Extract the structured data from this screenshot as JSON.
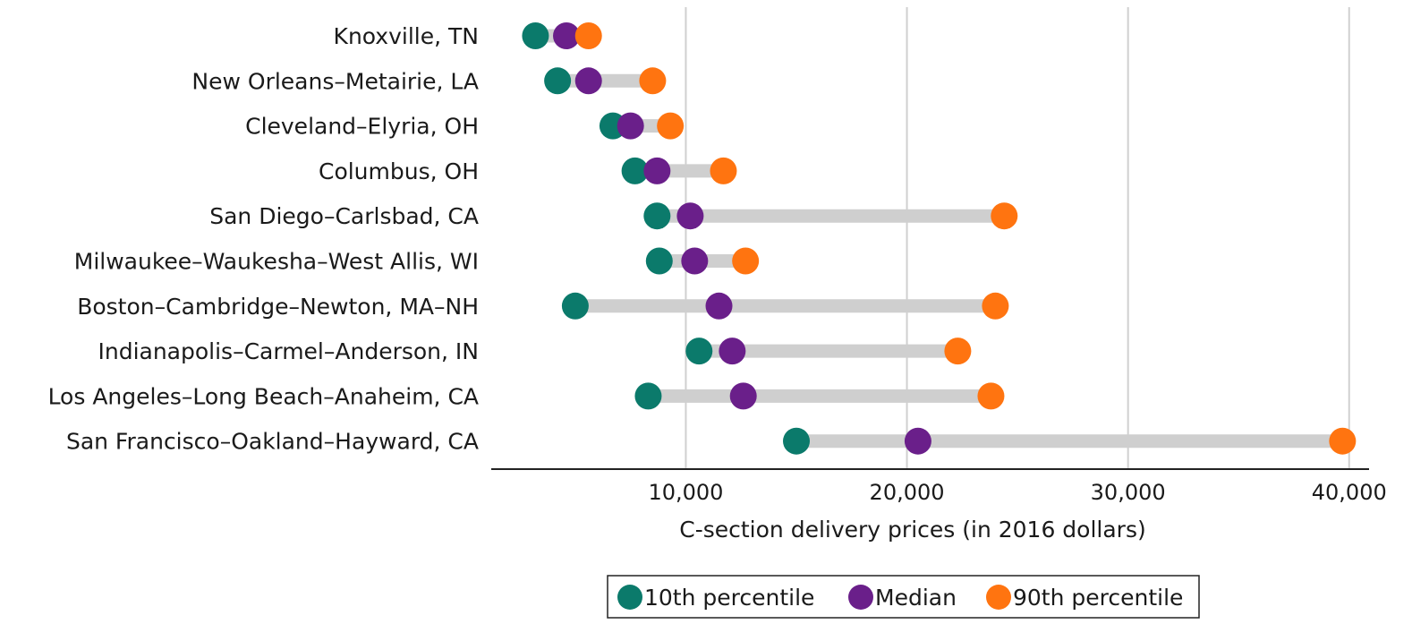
{
  "chart_data": {
    "type": "dot-range",
    "title": "",
    "xlabel": "C-section delivery prices (in 2016 dollars)",
    "ylabel": "",
    "xlim": [
      1200,
      40900
    ],
    "xticks": [
      10000,
      20000,
      30000,
      40000
    ],
    "xtick_labels": [
      "10,000",
      "20,000",
      "30,000",
      "40,000"
    ],
    "grid": "vertical",
    "legend_position": "bottom-center",
    "categories": [
      "Knoxville, TN",
      "New Orleans–Metairie, LA",
      "Cleveland–Elyria, OH",
      "Columbus, OH",
      "San Diego–Carlsbad, CA",
      "Milwaukee–Waukesha–West Allis, WI",
      "Boston–Cambridge–Newton, MA–NH",
      "Indianapolis–Carmel–Anderson, IN",
      "Los Angeles–Long Beach–Anaheim, CA",
      "San Francisco–Oakland–Hayward, CA"
    ],
    "series": [
      {
        "name": "10th percentile",
        "color": "#0b7a6b",
        "values": [
          3200,
          4200,
          6700,
          7700,
          8700,
          8800,
          5000,
          10600,
          8300,
          15000
        ]
      },
      {
        "name": "Median",
        "color": "#6a1f8a",
        "values": [
          4600,
          5600,
          7500,
          8700,
          10200,
          10400,
          11500,
          12100,
          12600,
          20500
        ]
      },
      {
        "name": "90th percentile",
        "color": "#ff7410",
        "values": [
          5600,
          8500,
          9300,
          11700,
          24400,
          12700,
          24000,
          22300,
          23800,
          39700
        ]
      }
    ],
    "colors": {
      "range_bar": "#cfcfcf",
      "grid": "#d0d0d0",
      "axis": "#222222"
    }
  }
}
